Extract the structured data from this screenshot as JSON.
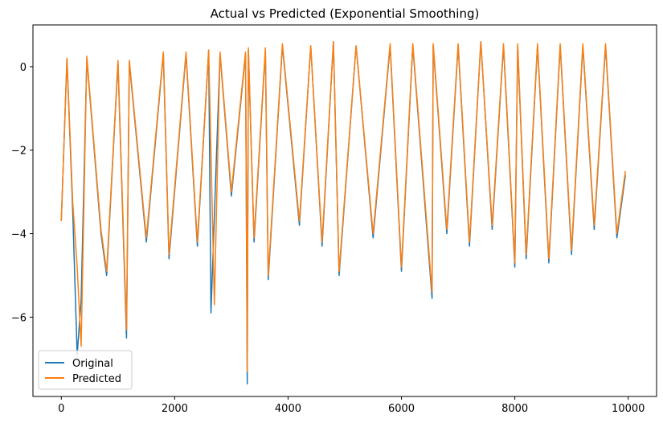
{
  "chart_data": {
    "type": "line",
    "title": "Actual vs Predicted (Exponential Smoothing)",
    "xlabel": "",
    "ylabel": "",
    "xlim": [
      -500,
      10500
    ],
    "ylim": [
      -7.9,
      1.0
    ],
    "x_ticks": [
      0,
      2000,
      4000,
      6000,
      8000,
      10000
    ],
    "x_tick_labels": [
      "0",
      "2000",
      "4000",
      "6000",
      "8000",
      "10000"
    ],
    "y_ticks": [
      0,
      -2,
      -4,
      -6
    ],
    "y_tick_labels": [
      "0",
      "−2",
      "−4",
      "−6"
    ],
    "grid": false,
    "legend_position": "lower-left",
    "series": [
      {
        "name": "Original",
        "color": "#1f77b4",
        "x": [
          0,
          100,
          200,
          280,
          350,
          450,
          700,
          800,
          1000,
          1150,
          1200,
          1500,
          1800,
          1900,
          2200,
          2400,
          2600,
          2640,
          2800,
          3000,
          3250,
          3280,
          3300,
          3400,
          3600,
          3650,
          3900,
          4200,
          4400,
          4600,
          4800,
          4900,
          5200,
          5500,
          5800,
          6000,
          6200,
          6540,
          6560,
          6800,
          7000,
          7200,
          7400,
          7600,
          7800,
          8000,
          8050,
          8200,
          8400,
          8600,
          8800,
          9000,
          9200,
          9400,
          9600,
          9800,
          9950
        ],
        "y": [
          -3.7,
          0.2,
          -3.4,
          -6.9,
          -5.6,
          0.2,
          -4.0,
          -5.0,
          0.1,
          -6.5,
          0.1,
          -4.2,
          0.3,
          -4.6,
          0.3,
          -4.3,
          0.4,
          -5.9,
          0.3,
          -3.1,
          0.3,
          -7.6,
          0.4,
          -4.2,
          0.4,
          -5.1,
          0.5,
          -3.8,
          0.5,
          -4.3,
          0.6,
          -5.0,
          0.5,
          -4.1,
          0.5,
          -4.9,
          0.5,
          -5.55,
          0.5,
          -4.0,
          0.5,
          -4.3,
          0.6,
          -3.9,
          0.5,
          -4.8,
          0.5,
          -4.6,
          0.5,
          -4.7,
          0.5,
          -4.5,
          0.5,
          -3.9,
          0.5,
          -4.1,
          -2.6
        ]
      },
      {
        "name": "Predicted",
        "color": "#ff7f0e",
        "x": [
          0,
          100,
          200,
          280,
          350,
          450,
          700,
          800,
          1000,
          1150,
          1200,
          1500,
          1800,
          1900,
          2200,
          2400,
          2600,
          2700,
          2800,
          3000,
          3250,
          3280,
          3300,
          3400,
          3600,
          3650,
          3900,
          4200,
          4400,
          4600,
          4800,
          4900,
          5200,
          5500,
          5800,
          6000,
          6200,
          6540,
          6560,
          6800,
          7000,
          7200,
          7400,
          7600,
          7800,
          8000,
          8050,
          8200,
          8400,
          8600,
          8800,
          9000,
          9200,
          9400,
          9600,
          9800,
          9950
        ],
        "y": [
          -3.7,
          0.2,
          -3.2,
          -4.8,
          -6.7,
          0.25,
          -3.9,
          -4.9,
          0.15,
          -6.3,
          0.15,
          -4.1,
          0.35,
          -4.5,
          0.35,
          -4.2,
          0.4,
          -5.7,
          0.35,
          -3.0,
          0.35,
          -7.3,
          0.45,
          -4.1,
          0.45,
          -5.0,
          0.55,
          -3.7,
          0.5,
          -4.2,
          0.6,
          -4.9,
          0.5,
          -4.0,
          0.55,
          -4.8,
          0.55,
          -5.4,
          0.55,
          -3.9,
          0.55,
          -4.2,
          0.6,
          -3.8,
          0.55,
          -4.7,
          0.55,
          -4.5,
          0.55,
          -4.6,
          0.55,
          -4.4,
          0.55,
          -3.8,
          0.55,
          -4.0,
          -2.5
        ]
      }
    ]
  }
}
